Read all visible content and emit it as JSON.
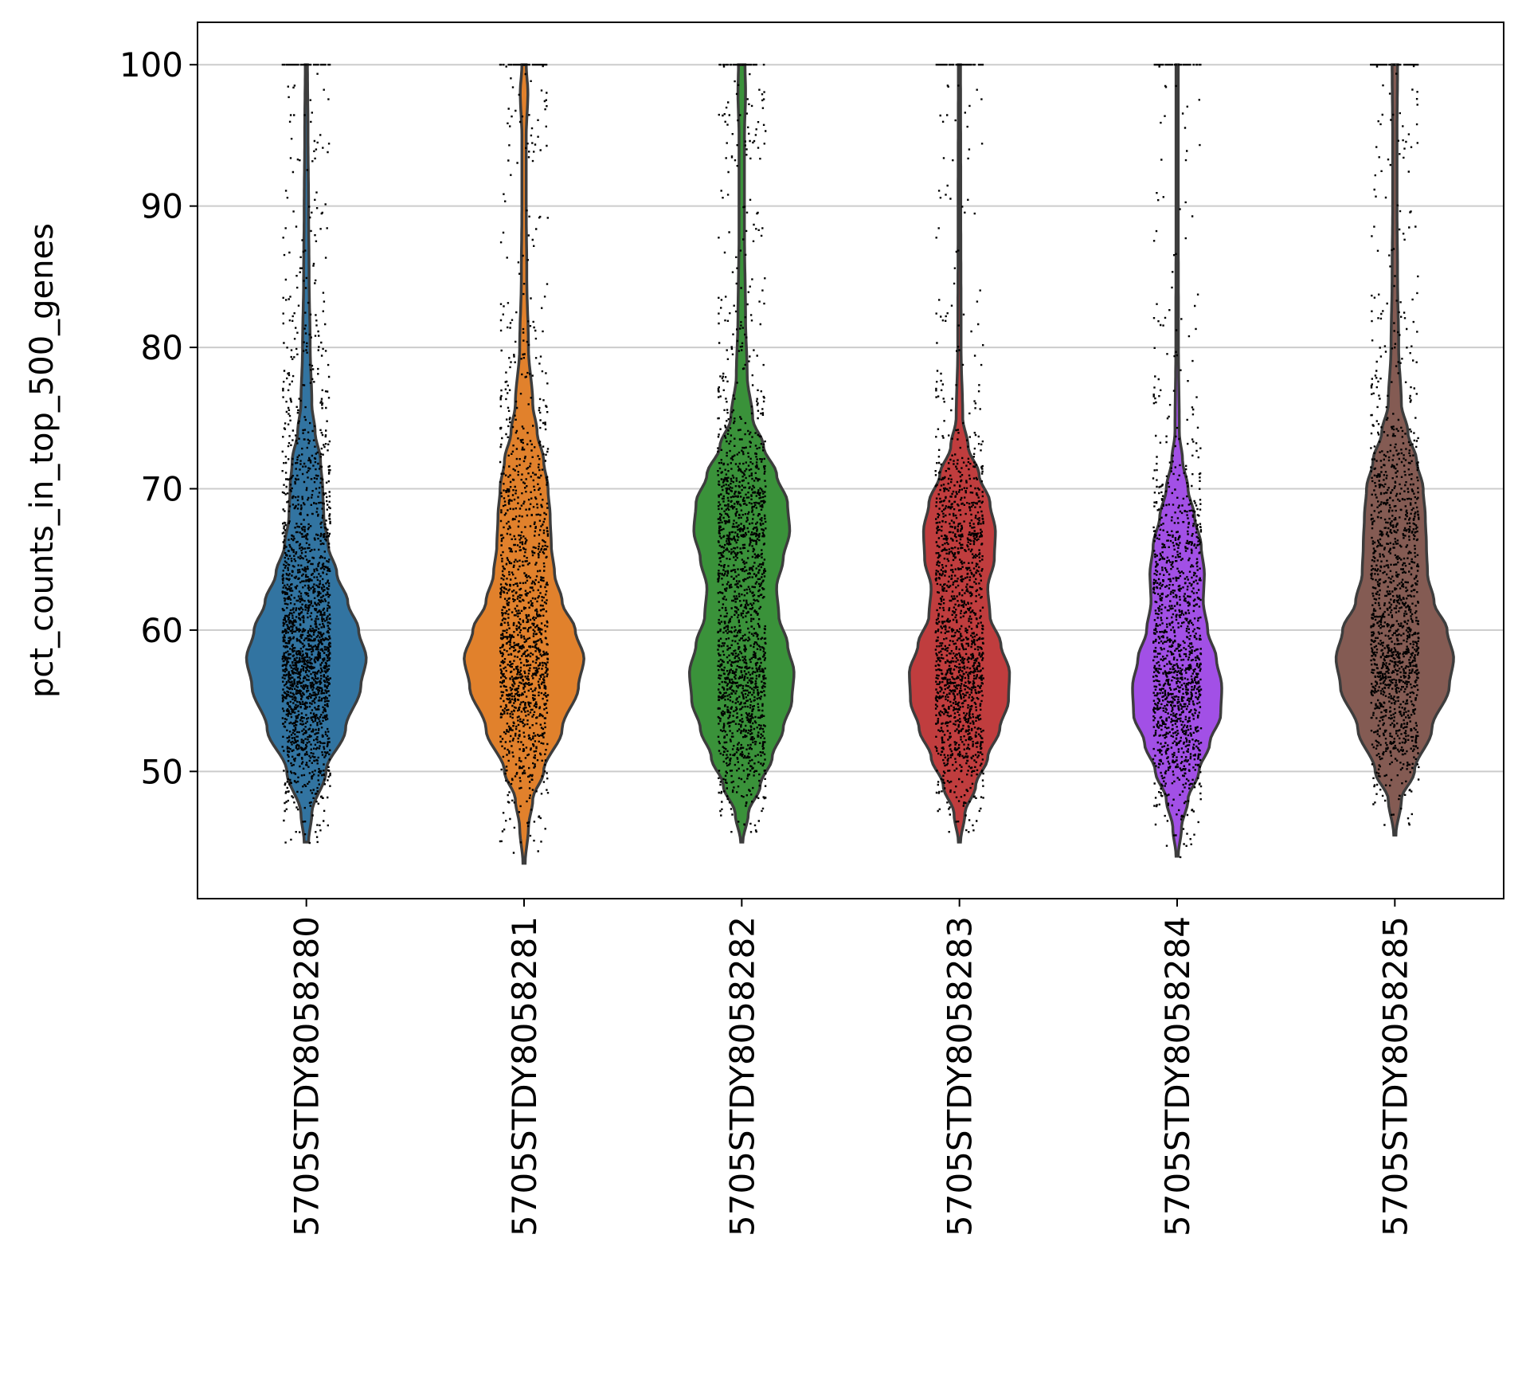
{
  "chart_data": {
    "type": "violin",
    "title": "",
    "xlabel": "",
    "ylabel": "pct_counts_in_top_500_genes",
    "ylim": [
      41,
      103
    ],
    "yticks": [
      50,
      60,
      70,
      80,
      90,
      100
    ],
    "grid": "horizontal",
    "categories": [
      "5705STDY8058280",
      "5705STDY8058281",
      "5705STDY8058282",
      "5705STDY8058283",
      "5705STDY8058284",
      "5705STDY8058285"
    ],
    "colors": [
      "#3274a1",
      "#e1812c",
      "#3a923a",
      "#c03d3e",
      "#a250e6",
      "#845b53"
    ],
    "series": [
      {
        "category": "5705STDY8058280",
        "min": 45,
        "max": 100,
        "jitter_points": 2600,
        "profile": [
          [
            45,
            0.02
          ],
          [
            47,
            0.05
          ],
          [
            50,
            0.18
          ],
          [
            53,
            0.36
          ],
          [
            56,
            0.5
          ],
          [
            58,
            0.55
          ],
          [
            60,
            0.48
          ],
          [
            62,
            0.38
          ],
          [
            64,
            0.28
          ],
          [
            66,
            0.2
          ],
          [
            68,
            0.16
          ],
          [
            70,
            0.15
          ],
          [
            72,
            0.13
          ],
          [
            74,
            0.08
          ],
          [
            76,
            0.05
          ],
          [
            80,
            0.035
          ],
          [
            85,
            0.025
          ],
          [
            90,
            0.02
          ],
          [
            95,
            0.015
          ],
          [
            100,
            0.01
          ]
        ]
      },
      {
        "category": "5705STDY8058281",
        "min": 43.5,
        "max": 100,
        "jitter_points": 2800,
        "profile": [
          [
            43.5,
            0.01
          ],
          [
            46,
            0.04
          ],
          [
            48,
            0.08
          ],
          [
            50,
            0.18
          ],
          [
            53,
            0.35
          ],
          [
            56,
            0.5
          ],
          [
            58,
            0.55
          ],
          [
            60,
            0.47
          ],
          [
            62,
            0.35
          ],
          [
            64,
            0.28
          ],
          [
            66,
            0.25
          ],
          [
            68,
            0.24
          ],
          [
            70,
            0.22
          ],
          [
            72,
            0.18
          ],
          [
            74,
            0.12
          ],
          [
            76,
            0.08
          ],
          [
            80,
            0.04
          ],
          [
            85,
            0.025
          ],
          [
            90,
            0.02
          ],
          [
            95,
            0.02
          ],
          [
            98,
            0.035
          ],
          [
            100,
            0.02
          ]
        ]
      },
      {
        "category": "5705STDY8058282",
        "min": 45,
        "max": 100,
        "jitter_points": 2500,
        "profile": [
          [
            45,
            0.01
          ],
          [
            47,
            0.06
          ],
          [
            49,
            0.17
          ],
          [
            51,
            0.28
          ],
          [
            53,
            0.38
          ],
          [
            55,
            0.46
          ],
          [
            57,
            0.48
          ],
          [
            59,
            0.42
          ],
          [
            61,
            0.34
          ],
          [
            63,
            0.32
          ],
          [
            65,
            0.38
          ],
          [
            67,
            0.44
          ],
          [
            69,
            0.42
          ],
          [
            71,
            0.32
          ],
          [
            73,
            0.2
          ],
          [
            75,
            0.1
          ],
          [
            78,
            0.05
          ],
          [
            82,
            0.035
          ],
          [
            88,
            0.025
          ],
          [
            95,
            0.025
          ],
          [
            98,
            0.035
          ],
          [
            100,
            0.03
          ]
        ]
      },
      {
        "category": "5705STDY8058283",
        "min": 45,
        "max": 100,
        "jitter_points": 1800,
        "profile": [
          [
            45,
            0.01
          ],
          [
            47,
            0.05
          ],
          [
            49,
            0.15
          ],
          [
            51,
            0.26
          ],
          [
            53,
            0.37
          ],
          [
            55,
            0.45
          ],
          [
            57,
            0.46
          ],
          [
            59,
            0.38
          ],
          [
            61,
            0.28
          ],
          [
            63,
            0.26
          ],
          [
            65,
            0.32
          ],
          [
            67,
            0.33
          ],
          [
            69,
            0.28
          ],
          [
            71,
            0.18
          ],
          [
            73,
            0.08
          ],
          [
            75,
            0.03
          ],
          [
            80,
            0.015
          ],
          [
            90,
            0.012
          ],
          [
            100,
            0.01
          ]
        ]
      },
      {
        "category": "5705STDY8058284",
        "min": 44,
        "max": 100,
        "jitter_points": 1400,
        "profile": [
          [
            44,
            0.01
          ],
          [
            46,
            0.04
          ],
          [
            48,
            0.1
          ],
          [
            50,
            0.2
          ],
          [
            52,
            0.3
          ],
          [
            54,
            0.4
          ],
          [
            56,
            0.41
          ],
          [
            58,
            0.36
          ],
          [
            60,
            0.28
          ],
          [
            62,
            0.24
          ],
          [
            64,
            0.25
          ],
          [
            66,
            0.22
          ],
          [
            68,
            0.16
          ],
          [
            70,
            0.1
          ],
          [
            72,
            0.05
          ],
          [
            74,
            0.02
          ],
          [
            80,
            0.012
          ],
          [
            90,
            0.01
          ],
          [
            100,
            0.01
          ]
        ]
      },
      {
        "category": "5705STDY8058285",
        "min": 45.5,
        "max": 100,
        "jitter_points": 3200,
        "profile": [
          [
            45.5,
            0.01
          ],
          [
            48,
            0.06
          ],
          [
            50,
            0.18
          ],
          [
            53,
            0.34
          ],
          [
            56,
            0.5
          ],
          [
            58,
            0.54
          ],
          [
            60,
            0.48
          ],
          [
            62,
            0.36
          ],
          [
            64,
            0.3
          ],
          [
            66,
            0.29
          ],
          [
            68,
            0.28
          ],
          [
            70,
            0.26
          ],
          [
            72,
            0.2
          ],
          [
            74,
            0.12
          ],
          [
            76,
            0.06
          ],
          [
            80,
            0.035
          ],
          [
            85,
            0.025
          ],
          [
            90,
            0.02
          ],
          [
            95,
            0.02
          ],
          [
            100,
            0.025
          ]
        ]
      }
    ]
  }
}
